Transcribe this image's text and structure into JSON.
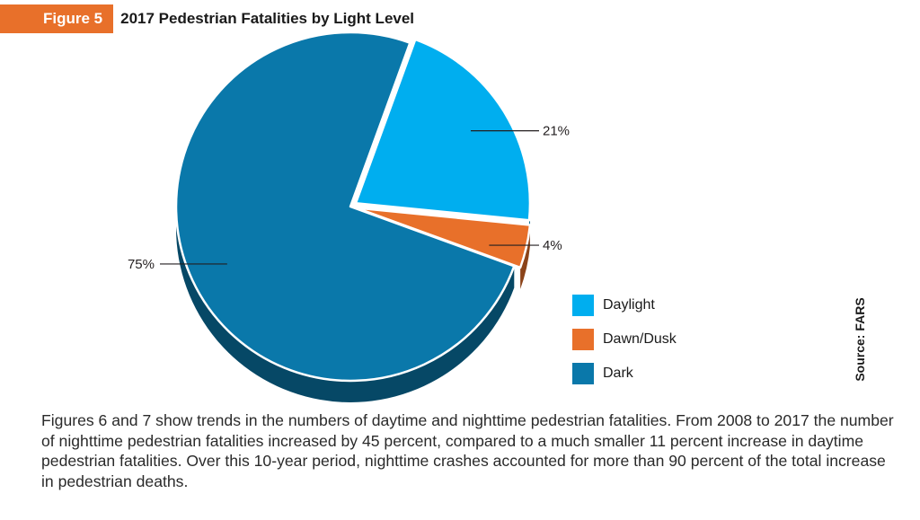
{
  "figure": {
    "badge": "Figure 5",
    "title": "2017 Pedestrian Fatalities by Light Level"
  },
  "chart_data": {
    "type": "pie",
    "title": "2017 Pedestrian Fatalities by Light Level",
    "slices": [
      {
        "label": "Daylight",
        "value": 21,
        "value_label": "21%",
        "color": "#00aeef",
        "exploded": true
      },
      {
        "label": "Dawn/Dusk",
        "value": 4,
        "value_label": "4%",
        "color": "#e8702a",
        "exploded": true
      },
      {
        "label": "Dark",
        "value": 75,
        "value_label": "75%",
        "color": "#0a78aa",
        "exploded": false
      }
    ],
    "legend_position": "bottom-right",
    "style": "3d"
  },
  "source": "Source: FARS",
  "body_text": "Figures 6 and 7 show trends in the numbers of daytime and nighttime pedestrian fatalities. From 2008 to 2017 the number of nighttime pedestrian fatalities increased by 45 percent, compared to a much smaller 11 percent increase in daytime pedestrian fatalities. Over this 10-year period, nighttime crashes accounted for more than 90 percent of the total increase in pedestrian deaths."
}
